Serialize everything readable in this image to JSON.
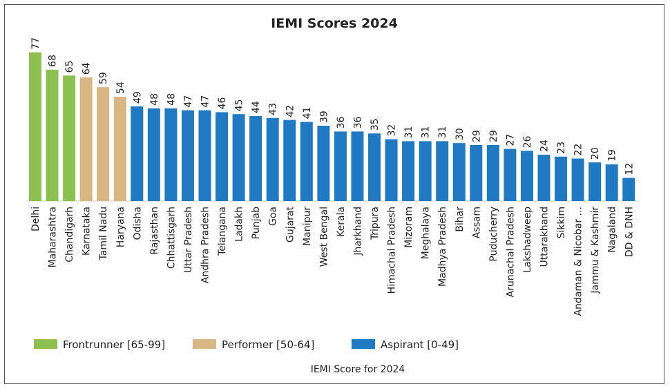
{
  "chart_data": {
    "type": "bar",
    "title": "IEMI Scores 2024",
    "xlabel": "IEMI Score for 2024",
    "ylabel": "",
    "ylim": [
      0,
      80
    ],
    "categories": [
      "Delhi",
      "Maharashtra",
      "Chandigarh",
      "Karnataka",
      "Tamil Nadu",
      "Haryana",
      "Odisha",
      "Rajasthan",
      "Chhattisgarh",
      "Uttar Pradesh",
      "Andhra Pradesh",
      "Telangana",
      "Ladakh",
      "Punjab",
      "Goa",
      "Gujarat",
      "Manipur",
      "West Bengal",
      "Kerala",
      "Jharkhand",
      "Tripura",
      "Himachal Pradesh",
      "Mizoram",
      "Meghalaya",
      "Madhya Pradesh",
      "Bihar",
      "Assam",
      "Puducherry",
      "Arunachal Pradesh",
      "Lakshadweep",
      "Uttarakhand",
      "Sikkim",
      "Andaman & Nicobar ...",
      "Jammu & Kashmir",
      "Nagaland",
      "DD & DNH"
    ],
    "values": [
      77,
      68,
      65,
      64,
      59,
      54,
      49,
      48,
      48,
      47,
      47,
      46,
      45,
      44,
      43,
      42,
      41,
      39,
      36,
      36,
      35,
      32,
      31,
      31,
      31,
      30,
      29,
      29,
      27,
      26,
      24,
      23,
      22,
      20,
      19,
      12
    ],
    "groups": [
      "Frontrunner",
      "Frontrunner",
      "Frontrunner",
      "Performer",
      "Performer",
      "Performer",
      "Aspirant",
      "Aspirant",
      "Aspirant",
      "Aspirant",
      "Aspirant",
      "Aspirant",
      "Aspirant",
      "Aspirant",
      "Aspirant",
      "Aspirant",
      "Aspirant",
      "Aspirant",
      "Aspirant",
      "Aspirant",
      "Aspirant",
      "Aspirant",
      "Aspirant",
      "Aspirant",
      "Aspirant",
      "Aspirant",
      "Aspirant",
      "Aspirant",
      "Aspirant",
      "Aspirant",
      "Aspirant",
      "Aspirant",
      "Aspirant",
      "Aspirant",
      "Aspirant",
      "Aspirant"
    ],
    "legend": [
      {
        "key": "Frontrunner",
        "label": "Frontrunner [65-99]",
        "color": "#8cc152"
      },
      {
        "key": "Performer",
        "label": "Performer [50-64]",
        "color": "#d9b785"
      },
      {
        "key": "Aspirant",
        "label": "Aspirant [0-49]",
        "color": "#1f7ac3"
      }
    ],
    "legend_position": "bottom"
  }
}
